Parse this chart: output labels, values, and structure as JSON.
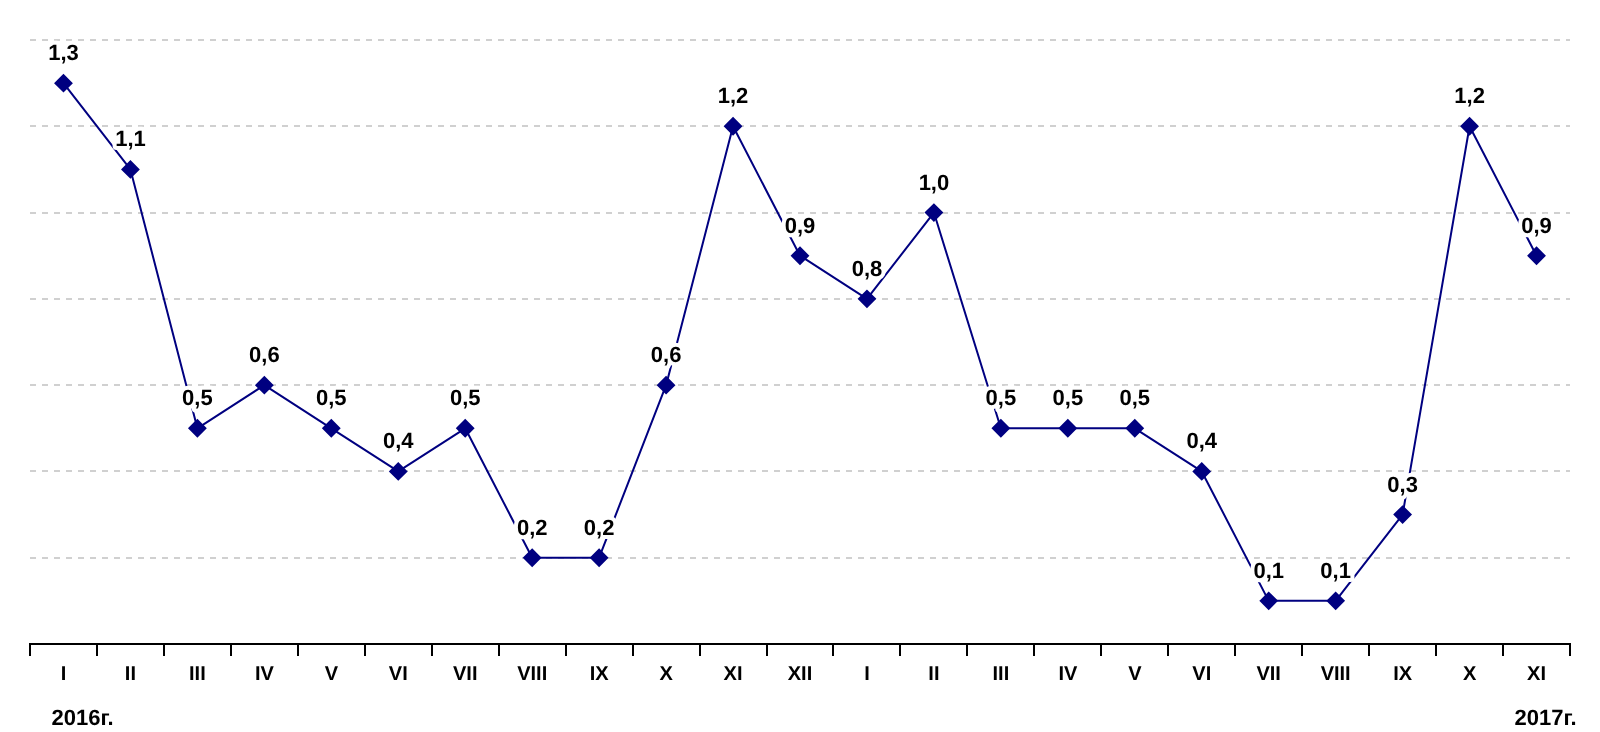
{
  "chart_data": {
    "type": "line",
    "categories": [
      "I",
      "II",
      "III",
      "IV",
      "V",
      "VI",
      "VII",
      "VIII",
      "IX",
      "X",
      "XI",
      "XII",
      "I",
      "II",
      "III",
      "IV",
      "V",
      "VI",
      "VII",
      "VIII",
      "IX",
      "X",
      "XI"
    ],
    "series": [
      {
        "color": "#000080",
        "values": [
          1.3,
          1.1,
          0.5,
          0.6,
          0.5,
          0.4,
          0.5,
          0.2,
          0.2,
          0.6,
          1.2,
          0.9,
          0.8,
          1.0,
          0.5,
          0.5,
          0.5,
          0.4,
          0.1,
          0.1,
          0.3,
          1.2,
          0.9
        ],
        "value_labels": [
          "1,3",
          "1,1",
          "0,5",
          "0,6",
          "0,5",
          "0,4",
          "0,5",
          "0,2",
          "0,2",
          "0,6",
          "1,2",
          "0,9",
          "0,8",
          "1,0",
          "0,5",
          "0,5",
          "0,5",
          "0,4",
          "0,1",
          "0,1",
          "0,3",
          "1,2",
          "0,9"
        ]
      }
    ],
    "grid": "y",
    "marker": "diamond",
    "line_style": "solid",
    "legend": false,
    "tick_labels": "x",
    "annotations": [
      "2016г.",
      "2017г."
    ]
  }
}
